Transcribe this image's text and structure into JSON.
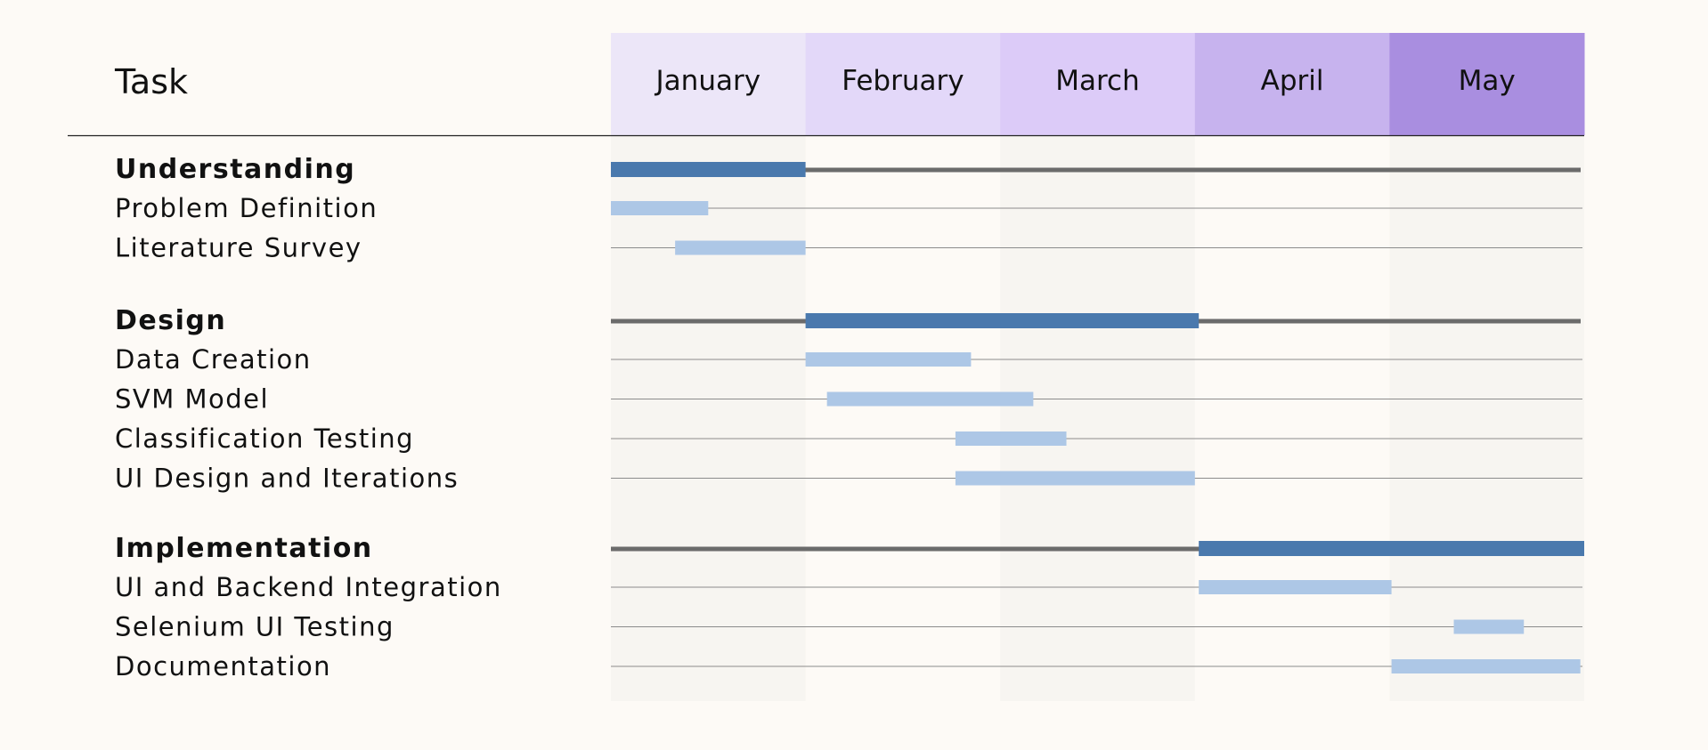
{
  "chart_data": {
    "type": "gantt",
    "title": "",
    "header_label": "Task",
    "months": [
      {
        "label": "January",
        "color": "#ece6f8"
      },
      {
        "label": "February",
        "color": "#e3d8f9"
      },
      {
        "label": "March",
        "color": "#dccbf8"
      },
      {
        "label": "April",
        "color": "#c7b3ee"
      },
      {
        "label": "May",
        "color": "#a98ee0"
      }
    ],
    "time_unit": "month index (0 = start of January, 5 = end of May)",
    "xlim": [
      0,
      5
    ],
    "colors": {
      "phase_bar": "#4a79ad",
      "task_bar": "#adc7e6",
      "phase_line": "#6b6b6b",
      "task_line": "#8c8c8c",
      "stripe": "#f7f5f1"
    },
    "phases": [
      {
        "name": "Understanding",
        "start": 0.0,
        "end": 1.0,
        "tasks": [
          {
            "name": "Problem Definition",
            "start": 0.0,
            "end": 0.5
          },
          {
            "name": "Literature Survey",
            "start": 0.33,
            "end": 1.0
          }
        ]
      },
      {
        "name": "Design",
        "start": 1.0,
        "end": 3.02,
        "tasks": [
          {
            "name": "Data Creation",
            "start": 1.0,
            "end": 1.85
          },
          {
            "name": "SVM Model",
            "start": 1.11,
            "end": 2.17
          },
          {
            "name": "Classification Testing",
            "start": 1.77,
            "end": 2.34
          },
          {
            "name": "UI Design and Iterations",
            "start": 1.77,
            "end": 3.0
          }
        ]
      },
      {
        "name": "Implementation",
        "start": 3.02,
        "end": 5.0,
        "tasks": [
          {
            "name": "UI and Backend Integration",
            "start": 3.02,
            "end": 4.01
          },
          {
            "name": "Selenium UI Testing",
            "start": 4.33,
            "end": 4.69
          },
          {
            "name": "Documentation",
            "start": 4.01,
            "end": 4.98
          }
        ]
      }
    ]
  }
}
